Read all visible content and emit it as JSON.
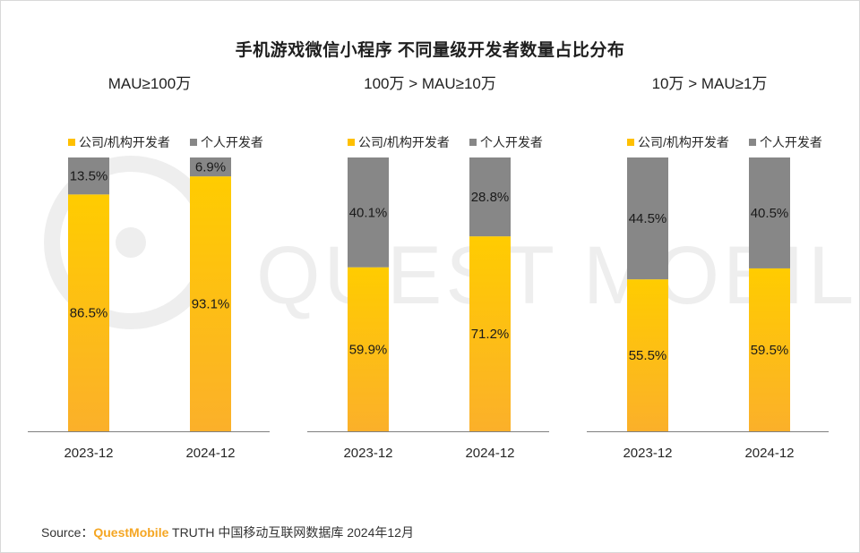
{
  "title": "手机游戏微信小程序 不同量级开发者数量占比分布",
  "colors": {
    "company_top": "#ffcc00",
    "company_bottom": "#fbb02a",
    "individual": "#878787",
    "axis": "#7f7f7f",
    "watermark": "#eeeeee"
  },
  "watermark_text": "QUEST MOBILE",
  "chart_data": [
    {
      "type": "bar",
      "stacked": true,
      "percent": true,
      "title": "MAU≥100万",
      "categories": [
        "2023-12",
        "2024-12"
      ],
      "series": [
        {
          "name": "公司/机构开发者",
          "values": [
            86.5,
            93.1
          ],
          "labels": [
            "86.5%",
            "93.1%"
          ]
        },
        {
          "name": "个人开发者",
          "values": [
            13.5,
            6.9
          ],
          "labels": [
            "13.5%",
            "6.9%"
          ]
        }
      ],
      "ylim": [
        0,
        100
      ],
      "legend": "top"
    },
    {
      "type": "bar",
      "stacked": true,
      "percent": true,
      "title": "100万 > MAU≥10万",
      "categories": [
        "2023-12",
        "2024-12"
      ],
      "series": [
        {
          "name": "公司/机构开发者",
          "values": [
            59.9,
            71.2
          ],
          "labels": [
            "59.9%",
            "71.2%"
          ]
        },
        {
          "name": "个人开发者",
          "values": [
            40.1,
            28.8
          ],
          "labels": [
            "40.1%",
            "28.8%"
          ]
        }
      ],
      "ylim": [
        0,
        100
      ],
      "legend": "top"
    },
    {
      "type": "bar",
      "stacked": true,
      "percent": true,
      "title": "10万 > MAU≥1万",
      "categories": [
        "2023-12",
        "2024-12"
      ],
      "series": [
        {
          "name": "公司/机构开发者",
          "values": [
            55.5,
            59.5
          ],
          "labels": [
            "55.5%",
            "59.5%"
          ]
        },
        {
          "name": "个人开发者",
          "values": [
            44.5,
            40.5
          ],
          "labels": [
            "44.5%",
            "40.5%"
          ]
        }
      ],
      "ylim": [
        0,
        100
      ],
      "legend": "top"
    }
  ],
  "source": {
    "label": "Source：",
    "brand": "QuestMobile",
    "text": " TRUTH 中国移动互联网数据库 2024年12月"
  }
}
